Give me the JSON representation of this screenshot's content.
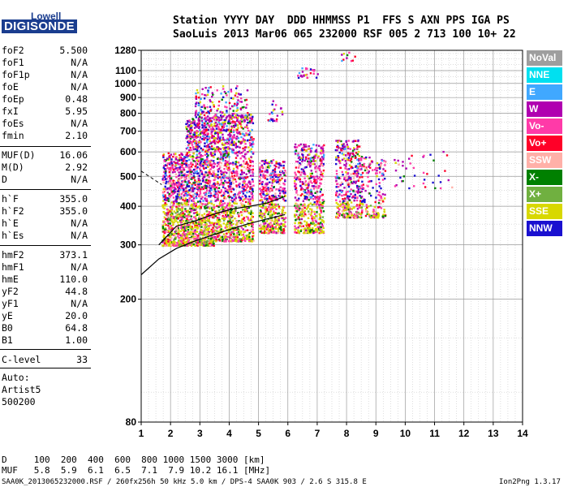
{
  "logo": {
    "line1": "Lowell",
    "line2": "DIGISONDE"
  },
  "header": {
    "labels_line": "Station YYYY DAY  DDD HHMMSS P1  FFS S AXN PPS IGA PS",
    "values_line": "SaoLuis 2013 Mar06 065 232000 RSF 005 2 713 100 10+ 22"
  },
  "params": [
    {
      "k": "foF2",
      "v": "5.500"
    },
    {
      "k": "foF1",
      "v": "N/A"
    },
    {
      "k": "foF1p",
      "v": "N/A"
    },
    {
      "k": "foE",
      "v": "N/A"
    },
    {
      "k": "foEp",
      "v": "0.48"
    },
    {
      "k": "fxI",
      "v": "5.95"
    },
    {
      "k": "foEs",
      "v": "N/A"
    },
    {
      "k": "fmin",
      "v": "2.10"
    },
    {
      "k": "MUF(D)",
      "v": "16.06"
    },
    {
      "k": "M(D)",
      "v": "2.92"
    },
    {
      "k": "D",
      "v": "N/A"
    },
    {
      "k": "h`F",
      "v": "355.0"
    },
    {
      "k": "h`F2",
      "v": "355.0"
    },
    {
      "k": "h`E",
      "v": "N/A"
    },
    {
      "k": "h`Es",
      "v": "N/A"
    },
    {
      "k": "hmF2",
      "v": "373.1"
    },
    {
      "k": "hmF1",
      "v": "N/A"
    },
    {
      "k": "hmE",
      "v": "110.0"
    },
    {
      "k": "yF2",
      "v": "44.8"
    },
    {
      "k": "yF1",
      "v": "N/A"
    },
    {
      "k": "yE",
      "v": "20.0"
    },
    {
      "k": "B0",
      "v": "64.8"
    },
    {
      "k": "B1",
      "v": "1.00"
    },
    {
      "k": "C-level",
      "v": "33"
    }
  ],
  "auto": {
    "line1": "Auto:",
    "line2": "Artist5",
    "line3": "500200"
  },
  "footer": {
    "d_line": "D     100  200  400  600  800 1000 1500 3000 [km]",
    "muf_line": "MUF   5.8  5.9  6.1  6.5  7.1  7.9 10.2 16.1 [MHz]",
    "file_line": "SAA0K_2013065232000.RSF / 260fx256h 50 kHz 5.0 km / DPS-4 SAA0K 903 / 2.6 S 315.8 E",
    "version": "Ion2Png 1.3.17"
  },
  "legend": [
    {
      "label": "NoVal",
      "color": "#9e9e9e"
    },
    {
      "label": "NNE",
      "color": "#00e0f0"
    },
    {
      "label": "E",
      "color": "#40a8ff"
    },
    {
      "label": "W",
      "color": "#b000b0"
    },
    {
      "label": "Vo-",
      "color": "#ff3aa8"
    },
    {
      "label": "Vo+",
      "color": "#ff0028"
    },
    {
      "label": "SSW",
      "color": "#ffb0a8"
    },
    {
      "label": "X-",
      "color": "#008000"
    },
    {
      "label": "X+",
      "color": "#70b040"
    },
    {
      "label": "SSE",
      "color": "#d8d800"
    },
    {
      "label": "NNW",
      "color": "#1a10d0"
    }
  ],
  "chart_data": {
    "type": "scatter",
    "xlim": [
      1,
      14
    ],
    "ylim": [
      80,
      1280
    ],
    "yscale": "log",
    "x_ticks": [
      1,
      2,
      3,
      4,
      5,
      6,
      7,
      8,
      9,
      10,
      11,
      12,
      13,
      14
    ],
    "y_ticks": [
      80,
      200,
      300,
      400,
      500,
      600,
      700,
      800,
      900,
      1000,
      1100,
      1280
    ],
    "grid": true,
    "legend_position": "right",
    "clusters": [
      {
        "x": [
          1.7,
          2.5
        ],
        "y": [
          300,
          600
        ],
        "n": 700
      },
      {
        "x": [
          2.5,
          3.5
        ],
        "y": [
          300,
          780
        ],
        "n": 1100
      },
      {
        "x": [
          3.5,
          4.8
        ],
        "y": [
          310,
          800
        ],
        "n": 1100
      },
      {
        "x": [
          2.8,
          4.6
        ],
        "y": [
          780,
          990
        ],
        "n": 160
      },
      {
        "x": [
          5.0,
          5.9
        ],
        "y": [
          330,
          570
        ],
        "n": 500
      },
      {
        "x": [
          6.2,
          7.2
        ],
        "y": [
          330,
          640
        ],
        "n": 550
      },
      {
        "x": [
          7.6,
          8.5
        ],
        "y": [
          370,
          660
        ],
        "n": 420
      },
      {
        "x": [
          8.5,
          9.3
        ],
        "y": [
          370,
          580
        ],
        "n": 160
      },
      {
        "x": [
          9.6,
          11.6
        ],
        "y": [
          460,
          620
        ],
        "n": 40
      },
      {
        "x": [
          6.3,
          7.0
        ],
        "y": [
          1050,
          1130
        ],
        "n": 25
      },
      {
        "x": [
          5.3,
          5.8
        ],
        "y": [
          760,
          900
        ],
        "n": 25
      },
      {
        "x": [
          7.8,
          8.3
        ],
        "y": [
          1190,
          1290
        ],
        "n": 10
      }
    ],
    "trace_lower": {
      "x": [
        1,
        1.6,
        2.2,
        2.8,
        3.4,
        4.0,
        4.6,
        5.2,
        5.9
      ],
      "y": [
        240,
        270,
        292,
        308,
        322,
        336,
        350,
        362,
        376
      ]
    },
    "trace_upper": {
      "x": [
        1.6,
        2.2,
        2.9,
        3.5,
        4.1,
        4.7,
        5.3,
        5.9
      ],
      "y": [
        300,
        345,
        360,
        378,
        392,
        400,
        410,
        430
      ]
    }
  }
}
